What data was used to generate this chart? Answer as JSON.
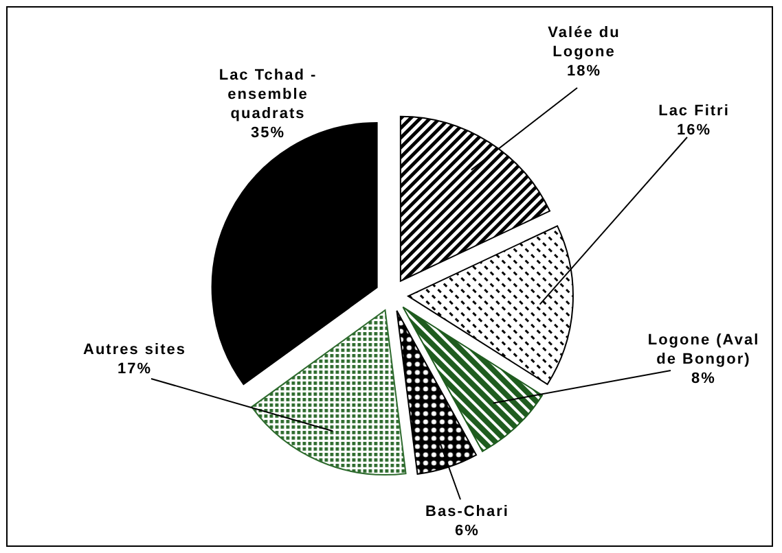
{
  "chart_data": {
    "type": "pie",
    "categories": [
      "Valée du Logone",
      "Lac Fitri",
      "Logone (Aval de Bongor)",
      "Bas-Chari",
      "Autres sites",
      "Lac Tchad - ensemble quadrats"
    ],
    "values": [
      18,
      16,
      8,
      6,
      17,
      35
    ],
    "colors": [
      "#000000",
      "#000000",
      "#1f5c1f",
      "#000000",
      "#2e6b2e",
      "#000000"
    ],
    "value_labels": [
      "18%",
      "16%",
      "8%",
      "6%",
      "17%",
      "35%"
    ]
  }
}
